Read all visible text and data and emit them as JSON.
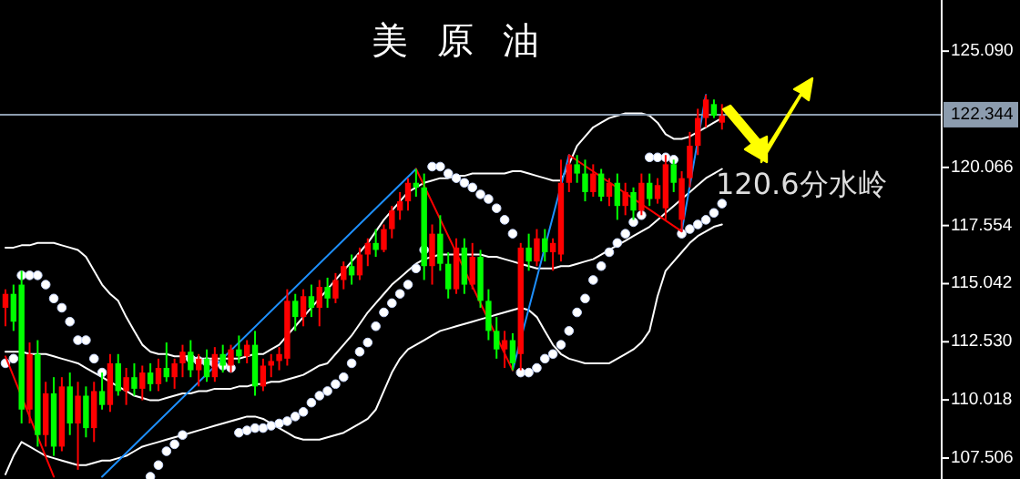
{
  "chart_data": {
    "type": "candlestick",
    "title": "美原油",
    "categories": [
      null,
      null,
      null,
      null,
      null,
      null,
      null,
      null,
      null,
      null,
      null,
      null,
      null,
      null,
      null,
      null,
      null,
      null,
      null,
      null,
      null,
      null,
      null,
      null,
      null,
      null,
      null,
      null,
      null,
      null,
      null,
      null,
      null,
      null,
      null,
      null,
      null,
      null,
      null,
      null,
      null,
      null,
      null,
      null,
      null,
      null,
      null,
      null,
      null,
      null,
      null,
      null,
      null,
      null,
      null,
      null,
      null,
      null,
      null,
      null,
      null,
      null,
      null,
      null,
      null,
      null,
      null,
      null,
      null,
      null,
      null,
      null,
      null,
      null,
      null,
      null,
      null,
      null,
      null,
      null,
      null,
      null,
      null,
      null,
      null,
      null,
      null,
      null,
      null,
      null
    ],
    "ohlc": [
      [
        114.0,
        114.8,
        113.2,
        114.6
      ],
      [
        114.6,
        115.0,
        113.0,
        113.4
      ],
      [
        115.0,
        115.6,
        109.0,
        109.6
      ],
      [
        109.6,
        112.5,
        109.0,
        112.0
      ],
      [
        112.0,
        112.6,
        108.0,
        108.5
      ],
      [
        108.5,
        110.8,
        108.0,
        110.3
      ],
      [
        110.3,
        111.0,
        107.6,
        108.0
      ],
      [
        108.0,
        111.0,
        107.8,
        110.6
      ],
      [
        110.6,
        111.2,
        108.5,
        109.0
      ],
      [
        109.0,
        110.8,
        107.0,
        110.2
      ],
      [
        110.2,
        110.6,
        108.4,
        108.8
      ],
      [
        108.8,
        110.8,
        108.2,
        110.4
      ],
      [
        110.4,
        111.2,
        109.6,
        109.8
      ],
      [
        109.8,
        112.0,
        109.5,
        111.6
      ],
      [
        111.6,
        112.0,
        110.2,
        110.4
      ],
      [
        110.4,
        111.4,
        109.8,
        111.0
      ],
      [
        111.0,
        111.6,
        110.2,
        110.5
      ],
      [
        110.5,
        111.5,
        110.0,
        111.2
      ],
      [
        111.2,
        111.6,
        110.4,
        110.7
      ],
      [
        110.7,
        111.8,
        110.4,
        111.4
      ],
      [
        111.4,
        112.5,
        110.8,
        111.0
      ],
      [
        111.0,
        111.8,
        110.5,
        111.6
      ],
      [
        111.6,
        112.4,
        111.0,
        112.1
      ],
      [
        112.1,
        112.6,
        111.0,
        111.3
      ],
      [
        111.3,
        112.0,
        110.6,
        111.8
      ],
      [
        111.8,
        112.2,
        110.8,
        111.0
      ],
      [
        111.0,
        112.3,
        110.8,
        112.0
      ],
      [
        112.0,
        112.4,
        111.2,
        111.5
      ],
      [
        111.5,
        112.4,
        111.2,
        112.2
      ],
      [
        112.2,
        112.8,
        111.6,
        111.9
      ],
      [
        111.9,
        112.6,
        111.6,
        112.4
      ],
      [
        112.4,
        113.0,
        110.2,
        110.6
      ],
      [
        110.6,
        111.8,
        110.4,
        111.5
      ],
      [
        111.5,
        112.0,
        111.0,
        111.7
      ],
      [
        111.7,
        112.3,
        111.3,
        112.0
      ],
      [
        111.8,
        114.8,
        111.5,
        114.3
      ],
      [
        114.3,
        114.6,
        113.0,
        113.6
      ],
      [
        113.6,
        114.8,
        113.2,
        114.5
      ],
      [
        114.5,
        115.0,
        113.6,
        114.0
      ],
      [
        114.0,
        115.2,
        113.2,
        114.9
      ],
      [
        114.9,
        115.3,
        114.0,
        114.4
      ],
      [
        114.4,
        115.5,
        114.2,
        115.2
      ],
      [
        115.2,
        116.0,
        114.8,
        115.8
      ],
      [
        115.8,
        116.3,
        115.0,
        115.4
      ],
      [
        115.4,
        116.6,
        115.2,
        116.3
      ],
      [
        116.3,
        117.0,
        115.8,
        116.8
      ],
      [
        116.8,
        117.4,
        116.2,
        116.5
      ],
      [
        116.5,
        117.6,
        116.4,
        117.4
      ],
      [
        117.4,
        118.4,
        117.0,
        118.2
      ],
      [
        118.2,
        119.0,
        117.8,
        118.6
      ],
      [
        118.6,
        119.6,
        118.2,
        119.4
      ],
      [
        119.4,
        120.0,
        118.8,
        119.2
      ],
      [
        119.2,
        119.8,
        115.2,
        115.8
      ],
      [
        115.8,
        117.6,
        115.0,
        117.2
      ],
      [
        117.2,
        118.0,
        115.6,
        115.9
      ],
      [
        115.9,
        116.4,
        114.4,
        114.8
      ],
      [
        114.8,
        117.0,
        114.6,
        116.6
      ],
      [
        116.6,
        117.0,
        114.6,
        115.0
      ],
      [
        115.0,
        116.8,
        114.8,
        116.2
      ],
      [
        116.2,
        116.5,
        114.0,
        114.3
      ],
      [
        114.3,
        114.8,
        112.6,
        113.0
      ],
      [
        113.0,
        113.6,
        111.8,
        112.2
      ],
      [
        112.2,
        113.0,
        111.4,
        112.6
      ],
      [
        112.6,
        112.9,
        111.3,
        111.6
      ],
      [
        112.0,
        116.8,
        111.3,
        116.6
      ],
      [
        116.6,
        117.2,
        115.6,
        116.0
      ],
      [
        116.0,
        117.4,
        115.8,
        117.0
      ],
      [
        117.0,
        117.4,
        116.0,
        116.4
      ],
      [
        116.4,
        117.0,
        115.6,
        116.8
      ],
      [
        116.3,
        120.4,
        116.0,
        119.4
      ],
      [
        119.4,
        120.6,
        119.0,
        120.2
      ],
      [
        120.2,
        120.6,
        119.4,
        119.8
      ],
      [
        119.8,
        120.4,
        118.6,
        119.0
      ],
      [
        119.0,
        120.2,
        118.8,
        119.8
      ],
      [
        119.8,
        120.0,
        118.6,
        118.8
      ],
      [
        118.8,
        119.6,
        118.4,
        119.4
      ],
      [
        119.4,
        119.8,
        117.8,
        118.4
      ],
      [
        118.4,
        119.4,
        118.0,
        119.0
      ],
      [
        119.0,
        119.2,
        117.8,
        118.2
      ],
      [
        118.2,
        119.8,
        118.0,
        119.4
      ],
      [
        119.4,
        119.8,
        118.4,
        118.7
      ],
      [
        118.7,
        119.6,
        118.5,
        119.3
      ],
      [
        118.3,
        120.6,
        117.8,
        120.2
      ],
      [
        120.2,
        120.4,
        119.0,
        119.4
      ],
      [
        117.8,
        119.9,
        117.3,
        119.6
      ],
      [
        119.6,
        121.6,
        119.2,
        121.0
      ],
      [
        121.0,
        122.6,
        120.6,
        122.2
      ],
      [
        122.2,
        123.2,
        121.8,
        123.0
      ],
      [
        122.8,
        123.0,
        122.2,
        122.3
      ],
      [
        122.0,
        122.8,
        121.7,
        122.3
      ]
    ],
    "colors": [
      "#ff0000",
      "#00ff00",
      "#00ff00",
      "#ff0000",
      "#00ff00",
      "#ff0000",
      "#00ff00",
      "#ff0000",
      "#00ff00",
      "#ff0000",
      "#00ff00",
      "#ff0000",
      "#00ff00",
      "#ff0000",
      "#00ff00",
      "#ff0000",
      "#00ff00",
      "#ff0000",
      "#00ff00",
      "#ff0000",
      "#00ff00",
      "#ff0000",
      "#ff0000",
      "#00ff00",
      "#ff0000",
      "#00ff00",
      "#ff0000",
      "#00ff00",
      "#ff0000",
      "#00ff00",
      "#ff0000",
      "#00ff00",
      "#ff0000",
      "#ff0000",
      "#ff0000",
      "#ff0000",
      "#00ff00",
      "#ff0000",
      "#00ff00",
      "#ff0000",
      "#00ff00",
      "#ff0000",
      "#ff0000",
      "#00ff00",
      "#ff0000",
      "#ff0000",
      "#00ff00",
      "#ff0000",
      "#ff0000",
      "#ff0000",
      "#ff0000",
      "#00ff00",
      "#00ff00",
      "#ff0000",
      "#00ff00",
      "#00ff00",
      "#ff0000",
      "#00ff00",
      "#ff0000",
      "#00ff00",
      "#00ff00",
      "#00ff00",
      "#ff0000",
      "#00ff00",
      "#ff0000",
      "#00ff00",
      "#ff0000",
      "#00ff00",
      "#ff0000",
      "#ff0000",
      "#ff0000",
      "#00ff00",
      "#00ff00",
      "#ff0000",
      "#00ff00",
      "#ff0000",
      "#00ff00",
      "#ff0000",
      "#00ff00",
      "#ff0000",
      "#00ff00",
      "#ff0000",
      "#ff0000",
      "#00ff00",
      "#ff0000",
      "#ff0000",
      "#ff0000",
      "#ff0000",
      "#00ff00",
      "#ff0000"
    ],
    "series": [
      {
        "type": "line",
        "color": "#ffffff",
        "values": [
          116.6,
          116.6,
          116.7,
          116.7,
          116.8,
          116.8,
          116.8,
          116.7,
          116.6,
          116.5,
          116.2,
          115.6,
          115.0,
          114.6,
          114.3,
          113.6,
          113.0,
          112.4,
          112.1,
          112.0,
          112.0,
          111.9,
          111.9,
          111.9,
          111.8,
          111.8,
          111.8,
          111.8,
          111.8,
          111.8,
          111.9,
          112.0,
          112.0,
          112.2,
          112.4,
          112.8,
          113.2,
          113.6,
          114.0,
          114.4,
          114.8,
          115.2,
          115.6,
          116.0,
          116.4,
          116.8,
          117.3,
          117.8,
          118.2,
          118.6,
          119.0,
          119.2,
          119.4,
          119.5,
          119.6,
          119.6,
          119.7,
          119.7,
          119.8,
          119.8,
          119.8,
          119.8,
          119.8,
          119.9,
          119.9,
          119.8,
          119.7,
          119.6,
          119.5,
          119.5,
          120.2,
          121.0,
          121.4,
          121.8,
          122.0,
          122.2,
          122.3,
          122.4,
          122.4,
          122.4,
          122.3,
          122.0,
          121.5,
          121.3,
          121.3,
          121.4,
          121.6,
          121.8,
          122.0,
          122.2
        ]
      },
      {
        "type": "line",
        "color": "#ffffff",
        "values": [
          112.1,
          112.1,
          112.1,
          112.0,
          112.0,
          112.0,
          111.9,
          111.8,
          111.7,
          111.6,
          111.4,
          111.2,
          111.0,
          110.8,
          110.6,
          110.4,
          110.2,
          110.1,
          110.0,
          110.0,
          110.1,
          110.2,
          110.3,
          110.3,
          110.4,
          110.4,
          110.5,
          110.5,
          110.5,
          110.6,
          110.6,
          110.7,
          110.7,
          110.8,
          110.8,
          110.9,
          111.0,
          111.1,
          111.3,
          111.5,
          111.6,
          112.0,
          112.4,
          112.8,
          113.3,
          113.8,
          114.2,
          114.6,
          115.0,
          115.3,
          115.6,
          115.9,
          116.1,
          116.2,
          116.3,
          116.3,
          116.3,
          116.3,
          116.3,
          116.3,
          116.2,
          116.2,
          116.1,
          116.0,
          115.9,
          115.8,
          115.7,
          115.7,
          115.7,
          115.8,
          115.8,
          115.9,
          116.0,
          116.1,
          116.3,
          116.5,
          116.7,
          116.9,
          117.1,
          117.3,
          117.5,
          117.8,
          118.1,
          118.4,
          118.7,
          119.0,
          119.3,
          119.6,
          119.8,
          120.0
        ]
      },
      {
        "type": "line",
        "color": "#ffffff",
        "values": [
          106.8,
          107.6,
          108.2,
          108.0,
          107.8,
          107.6,
          107.5,
          107.4,
          107.3,
          107.2,
          107.2,
          107.3,
          107.4,
          107.4,
          107.5,
          107.6,
          107.8,
          108.0,
          108.1,
          108.2,
          108.3,
          108.4,
          108.5,
          108.6,
          108.7,
          108.8,
          108.9,
          109.0,
          109.1,
          109.2,
          109.3,
          109.3,
          109.2,
          109.0,
          108.8,
          108.6,
          108.4,
          108.3,
          108.3,
          108.3,
          108.4,
          108.5,
          108.6,
          108.8,
          109.0,
          109.2,
          109.6,
          110.4,
          111.2,
          111.8,
          112.2,
          112.4,
          112.6,
          112.8,
          113.0,
          113.1,
          113.2,
          113.3,
          113.4,
          113.5,
          113.6,
          113.7,
          113.8,
          113.9,
          114.0,
          113.9,
          113.6,
          113.0,
          112.4,
          112.0,
          111.8,
          111.7,
          111.6,
          111.6,
          111.6,
          111.6,
          111.8,
          112.0,
          112.2,
          112.5,
          113.0,
          114.5,
          115.6,
          116.0,
          116.4,
          116.8,
          117.1,
          117.3,
          117.5,
          117.6
        ]
      },
      {
        "type": "scatter",
        "marker": "circle",
        "color": "#ffffff",
        "values": [
          111.6,
          111.8,
          115.4,
          115.4,
          115.4,
          115.0,
          114.4,
          114.0,
          113.4,
          112.6,
          112.6,
          111.8,
          111.2,
          null,
          null,
          null,
          null,
          null,
          106.7,
          107.2,
          107.8,
          108.1,
          108.5,
          111.8,
          111.7,
          111.65,
          111.6,
          111.5,
          111.4,
          108.6,
          108.7,
          108.8,
          108.8,
          108.9,
          109.0,
          109.1,
          109.3,
          109.5,
          109.9,
          110.2,
          110.4,
          110.7,
          111.0,
          111.6,
          112.1,
          112.5,
          113.2,
          113.8,
          114.2,
          114.6,
          115.0,
          115.7,
          116.5,
          120.1,
          120.1,
          119.8,
          119.6,
          119.4,
          119.2,
          118.9,
          118.7,
          118.3,
          117.8,
          117.2,
          111.2,
          111.2,
          111.4,
          111.8,
          112.0,
          112.4,
          113.0,
          113.8,
          114.4,
          115.2,
          115.8,
          116.4,
          116.8,
          117.2,
          117.7,
          118.0,
          120.5,
          120.5,
          120.5,
          120.4,
          117.2,
          117.4,
          117.6,
          117.8,
          118.1,
          118.5
        ]
      },
      {
        "type": "line",
        "color": "#1e90ff",
        "values": [
          null,
          null,
          null,
          null,
          null,
          null,
          null,
          null,
          null,
          null,
          null,
          null,
          106.7,
          null,
          null,
          null,
          null,
          null,
          null,
          null,
          null,
          null,
          null,
          null,
          null,
          null,
          null,
          null,
          null,
          null,
          null,
          null,
          null,
          null,
          null,
          null,
          null,
          null,
          null,
          null,
          null,
          null,
          null,
          null,
          null,
          null,
          null,
          null,
          null,
          null,
          null,
          120.0,
          null,
          null,
          null,
          null,
          null,
          null,
          null,
          null,
          null,
          null,
          null,
          null,
          null,
          null,
          null,
          null,
          null,
          null,
          null,
          null,
          null,
          null,
          null,
          null,
          null,
          null,
          null,
          null,
          null,
          null,
          null,
          null,
          null,
          null,
          null,
          null,
          null,
          null
        ]
      },
      {
        "type": "line",
        "color": "#1e90ff",
        "values": [
          null,
          null,
          null,
          null,
          null,
          null,
          null,
          null,
          null,
          null,
          null,
          null,
          null,
          null,
          null,
          null,
          null,
          null,
          null,
          null,
          null,
          null,
          null,
          null,
          null,
          null,
          null,
          null,
          null,
          null,
          null,
          null,
          null,
          null,
          null,
          null,
          null,
          null,
          null,
          null,
          null,
          null,
          null,
          null,
          null,
          null,
          null,
          null,
          null,
          null,
          null,
          null,
          null,
          null,
          null,
          null,
          null,
          null,
          null,
          null,
          null,
          null,
          null,
          111.3,
          null,
          null,
          null,
          null,
          null,
          null,
          120.6,
          null,
          null,
          null,
          null,
          null,
          null,
          null,
          null,
          null,
          null,
          null,
          null,
          null,
          null,
          null,
          null,
          null,
          null,
          null
        ]
      },
      {
        "type": "line",
        "color": "#1e90ff",
        "values": [
          null,
          null,
          null,
          null,
          null,
          null,
          null,
          null,
          null,
          null,
          null,
          null,
          null,
          null,
          null,
          null,
          null,
          null,
          null,
          null,
          null,
          null,
          null,
          null,
          null,
          null,
          null,
          null,
          null,
          null,
          null,
          null,
          null,
          null,
          null,
          null,
          null,
          null,
          null,
          null,
          null,
          null,
          null,
          null,
          null,
          null,
          null,
          null,
          null,
          null,
          null,
          null,
          null,
          null,
          null,
          null,
          null,
          null,
          null,
          null,
          null,
          null,
          null,
          null,
          null,
          null,
          null,
          null,
          null,
          null,
          null,
          null,
          null,
          null,
          null,
          null,
          null,
          null,
          null,
          null,
          null,
          null,
          null,
          null,
          117.3,
          null,
          null,
          123.2,
          null,
          null
        ]
      },
      {
        "type": "line",
        "color": "#ff0000",
        "values": [
          111.9,
          null,
          null,
          null,
          null,
          null,
          106.7,
          null,
          null,
          null,
          null,
          null,
          null,
          null,
          null,
          null,
          null,
          null,
          null,
          null,
          null,
          null,
          null,
          null,
          null,
          null,
          null,
          null,
          null,
          null,
          null,
          null,
          null,
          null,
          null,
          null,
          null,
          null,
          null,
          null,
          null,
          null,
          null,
          null,
          null,
          null,
          null,
          null,
          null,
          null,
          null,
          null,
          null,
          null,
          null,
          null,
          null,
          null,
          null,
          null,
          null,
          null,
          null,
          null,
          null,
          null,
          null,
          null,
          null,
          null,
          null,
          null,
          null,
          null,
          null,
          null,
          null,
          null,
          null,
          null,
          null,
          null,
          null,
          null,
          null,
          null,
          null,
          null,
          null,
          null
        ]
      },
      {
        "type": "line",
        "color": "#ff0000",
        "values": [
          null,
          null,
          null,
          null,
          null,
          null,
          null,
          null,
          null,
          null,
          null,
          null,
          null,
          null,
          null,
          null,
          null,
          null,
          null,
          null,
          null,
          null,
          null,
          null,
          null,
          null,
          null,
          null,
          null,
          null,
          null,
          null,
          null,
          null,
          null,
          null,
          null,
          null,
          null,
          null,
          null,
          null,
          null,
          null,
          null,
          null,
          null,
          null,
          null,
          null,
          null,
          120.0,
          null,
          null,
          null,
          null,
          null,
          null,
          null,
          null,
          null,
          null,
          null,
          111.3,
          null,
          null,
          null,
          null,
          null,
          null,
          null,
          null,
          null,
          null,
          null,
          null,
          null,
          null,
          null,
          null,
          null,
          null,
          null,
          null,
          null,
          null,
          null,
          null,
          null,
          null
        ]
      },
      {
        "type": "line",
        "color": "#ff0000",
        "values": [
          null,
          null,
          null,
          null,
          null,
          null,
          null,
          null,
          null,
          null,
          null,
          null,
          null,
          null,
          null,
          null,
          null,
          null,
          null,
          null,
          null,
          null,
          null,
          null,
          null,
          null,
          null,
          null,
          null,
          null,
          null,
          null,
          null,
          null,
          null,
          null,
          null,
          null,
          null,
          null,
          null,
          null,
          null,
          null,
          null,
          null,
          null,
          null,
          null,
          null,
          null,
          null,
          null,
          null,
          null,
          null,
          null,
          null,
          null,
          null,
          null,
          null,
          null,
          null,
          null,
          null,
          null,
          null,
          null,
          null,
          120.6,
          null,
          null,
          null,
          null,
          null,
          null,
          null,
          null,
          null,
          null,
          null,
          null,
          null,
          117.3,
          null,
          null,
          null,
          null,
          null
        ]
      }
    ],
    "ylim": [
      106.6,
      127.3
    ],
    "yticks": [
      {
        "value": 107.506,
        "label": "107.506"
      },
      {
        "value": 110.018,
        "label": "110.018"
      },
      {
        "value": 112.53,
        "label": "112.530"
      },
      {
        "value": 115.042,
        "label": "115.042"
      },
      {
        "value": 117.554,
        "label": "117.554"
      },
      {
        "value": 120.066,
        "label": "120.066"
      },
      {
        "value": 125.09,
        "label": "125.090"
      }
    ],
    "ref_lines": [
      {
        "axis": "y",
        "value": 122.344,
        "label": "122.344",
        "color": "#8c9cae"
      }
    ],
    "annotations": [
      "120.6分水岭"
    ],
    "tick_labels": "y",
    "grid": false
  }
}
